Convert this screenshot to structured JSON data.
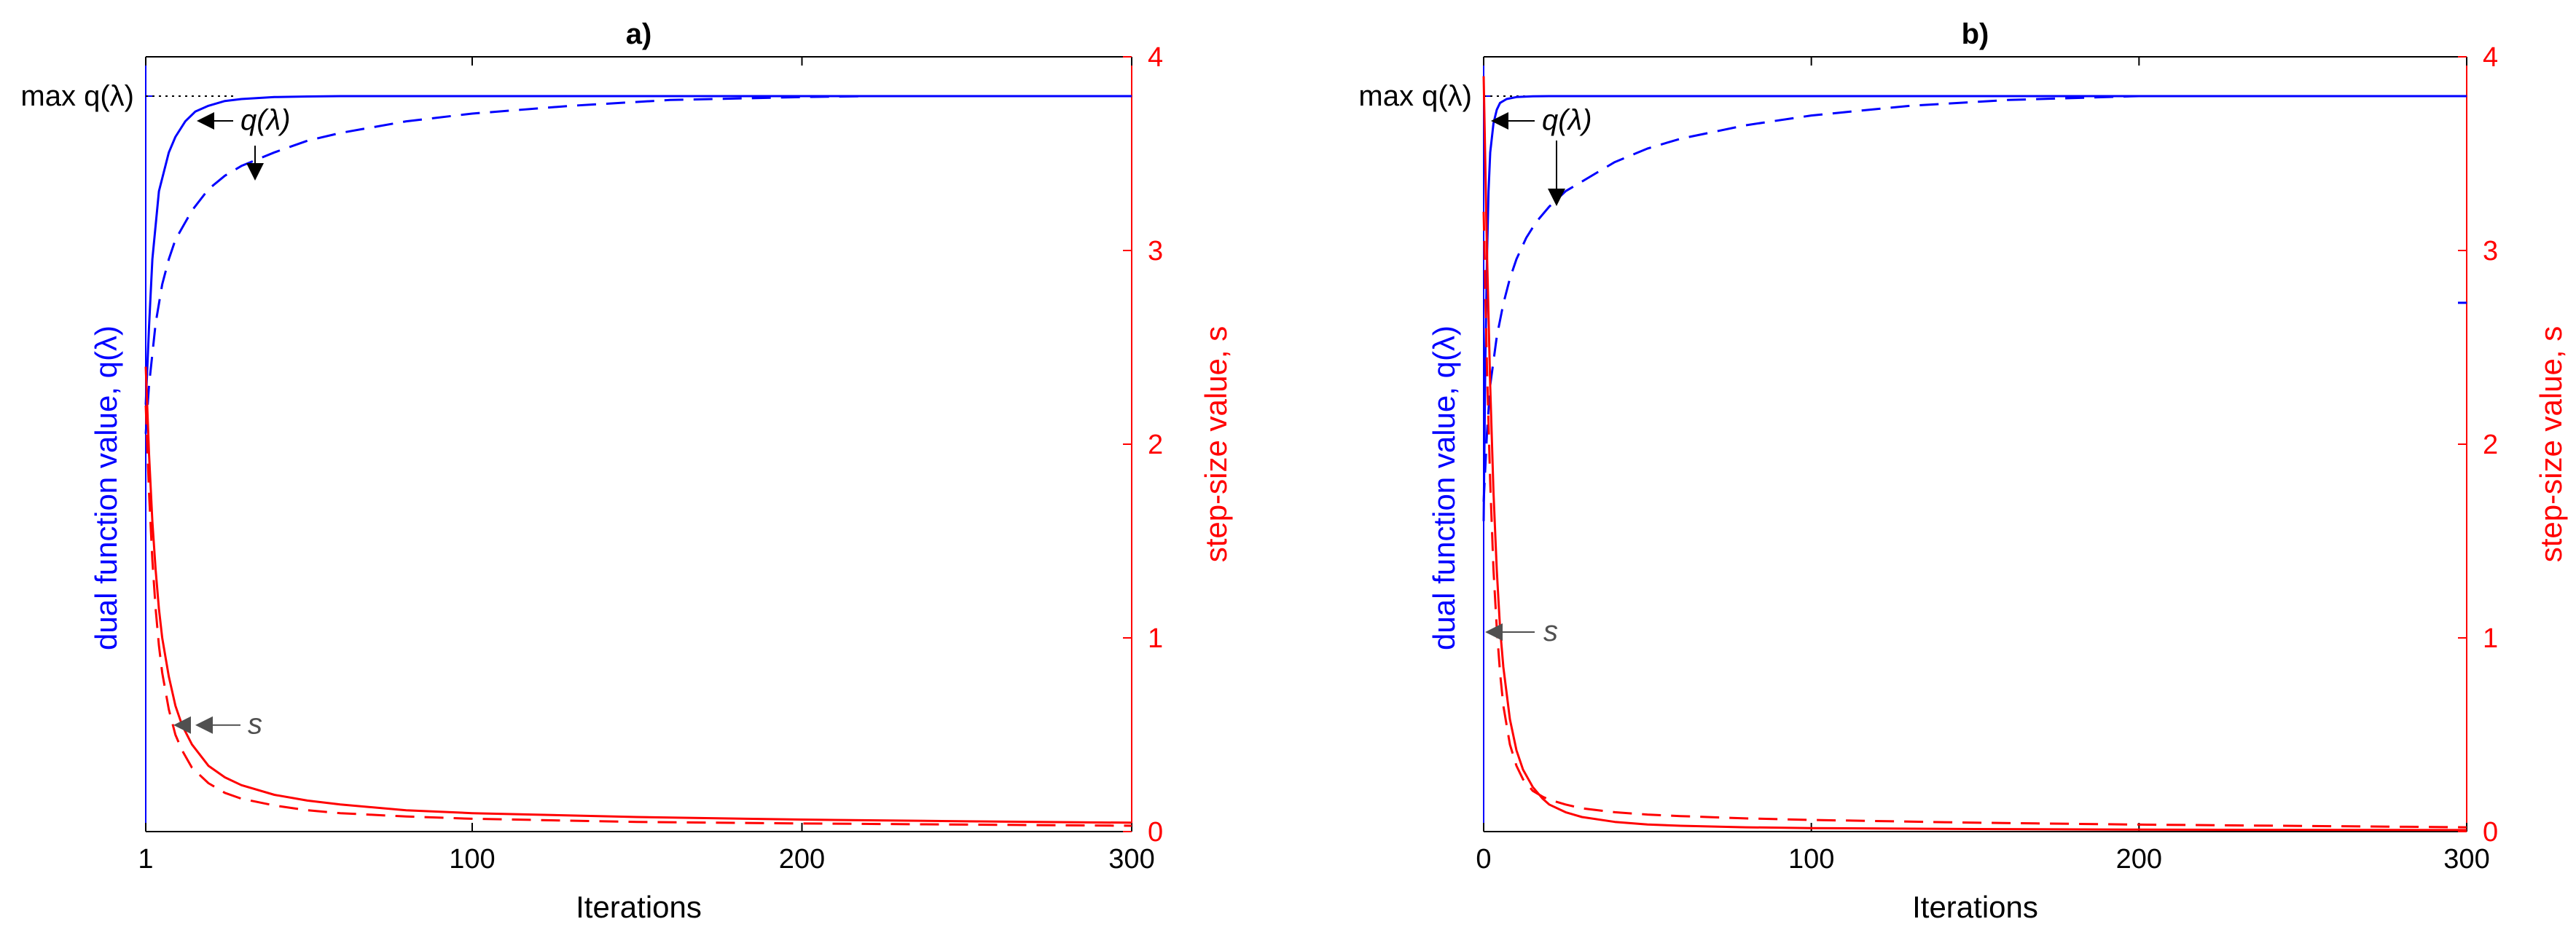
{
  "colors": {
    "dual": "#0000ff",
    "step": "#ff0000",
    "axis": "#000000",
    "arrow": "#505050",
    "background": "#ffffff"
  },
  "chart_data": [
    {
      "type": "line",
      "title": "a)",
      "xlabel": "Iterations",
      "ylabel_left": "dual function value, q(λ)",
      "ylabel_right": "step-size value, s",
      "xlim": [
        1,
        300
      ],
      "ylim_right": [
        0,
        4
      ],
      "xticks": [
        "1",
        "100",
        "200",
        "300"
      ],
      "yticks_right": [
        "0",
        "1",
        "2",
        "3",
        "4"
      ],
      "left_tick_text": "max q(λ)",
      "annotations": [
        {
          "text": "q(λ)",
          "target": "dual-solid"
        },
        {
          "text": "q(λ)",
          "target": "dual-dashed"
        },
        {
          "text": "s",
          "target": "step-size"
        }
      ],
      "series": [
        {
          "axis": "left",
          "style": "solid",
          "color": "dual",
          "x": [
            1,
            2,
            3,
            5,
            8,
            10,
            13,
            16,
            20,
            25,
            30,
            40,
            50,
            60,
            100,
            200,
            300
          ],
          "y": [
            2.2,
            2.6,
            2.95,
            3.3,
            3.5,
            3.58,
            3.66,
            3.71,
            3.74,
            3.765,
            3.775,
            3.785,
            3.788,
            3.79,
            3.79,
            3.79,
            3.79
          ]
        },
        {
          "axis": "left",
          "style": "dashed",
          "color": "dual",
          "x": [
            1,
            2,
            4,
            6,
            8,
            10,
            15,
            20,
            25,
            30,
            40,
            50,
            60,
            80,
            100,
            130,
            160,
            200,
            220
          ],
          "y": [
            2.05,
            2.3,
            2.62,
            2.82,
            2.95,
            3.05,
            3.2,
            3.31,
            3.38,
            3.43,
            3.5,
            3.56,
            3.6,
            3.66,
            3.7,
            3.74,
            3.77,
            3.785,
            3.79
          ]
        },
        {
          "axis": "right",
          "style": "solid",
          "color": "step",
          "x": [
            1,
            2,
            3,
            4,
            5,
            6,
            8,
            10,
            12,
            15,
            20,
            25,
            30,
            40,
            50,
            60,
            80,
            100,
            150,
            200,
            250,
            300
          ],
          "y": [
            2.4,
            1.95,
            1.6,
            1.35,
            1.15,
            1.0,
            0.8,
            0.65,
            0.55,
            0.45,
            0.34,
            0.28,
            0.24,
            0.19,
            0.16,
            0.14,
            0.11,
            0.095,
            0.075,
            0.062,
            0.053,
            0.046
          ]
        },
        {
          "axis": "right",
          "style": "dashed",
          "color": "step",
          "x": [
            1,
            2,
            3,
            4,
            5,
            6,
            8,
            10,
            12,
            15,
            20,
            25,
            30,
            40,
            50,
            60,
            80,
            100,
            150,
            200,
            250,
            300
          ],
          "y": [
            2.2,
            1.75,
            1.4,
            1.15,
            0.96,
            0.82,
            0.63,
            0.5,
            0.42,
            0.33,
            0.25,
            0.2,
            0.17,
            0.135,
            0.11,
            0.095,
            0.078,
            0.066,
            0.05,
            0.042,
            0.036,
            0.03
          ]
        }
      ]
    },
    {
      "type": "line",
      "title": "b)",
      "xlabel": "Iterations",
      "ylabel_left": "dual function value, q(λ)",
      "ylabel_right": "step-size value, s",
      "xlim": [
        0,
        300
      ],
      "ylim_right": [
        0,
        4
      ],
      "xticks": [
        "0",
        "100",
        "200",
        "300"
      ],
      "yticks_right": [
        "0",
        "1",
        "2",
        "3",
        "4"
      ],
      "left_tick_text": "max q(λ)",
      "annotations": [
        {
          "text": "q(λ)",
          "target": "dual-solid"
        },
        {
          "text": "s",
          "target": "step-size"
        }
      ],
      "series": [
        {
          "axis": "left",
          "style": "solid",
          "color": "dual",
          "x": [
            0,
            0.5,
            1,
            1.5,
            2,
            3,
            4,
            5,
            7,
            10,
            15,
            20,
            40,
            100,
            200,
            300
          ],
          "y": [
            1.6,
            2.4,
            2.95,
            3.3,
            3.5,
            3.65,
            3.72,
            3.755,
            3.775,
            3.785,
            3.789,
            3.79,
            3.79,
            3.79,
            3.79,
            3.79
          ]
        },
        {
          "axis": "left",
          "style": "dashed",
          "color": "dual",
          "x": [
            0,
            1,
            2,
            4,
            6,
            8,
            10,
            13,
            16,
            20,
            25,
            30,
            35,
            40,
            50,
            60,
            80,
            100,
            130,
            160,
            200
          ],
          "y": [
            1.7,
            2.05,
            2.3,
            2.55,
            2.72,
            2.85,
            2.95,
            3.06,
            3.14,
            3.22,
            3.3,
            3.35,
            3.4,
            3.45,
            3.52,
            3.57,
            3.64,
            3.69,
            3.74,
            3.77,
            3.79
          ]
        },
        {
          "axis": "right",
          "style": "solid",
          "color": "step",
          "x": [
            0,
            1,
            2,
            3,
            4,
            5,
            6,
            8,
            10,
            12,
            15,
            18,
            20,
            25,
            30,
            40,
            50,
            60,
            80,
            100,
            150,
            200,
            300
          ],
          "y": [
            3.9,
            3.0,
            2.3,
            1.75,
            1.35,
            1.05,
            0.85,
            0.58,
            0.42,
            0.32,
            0.23,
            0.17,
            0.14,
            0.1,
            0.075,
            0.05,
            0.037,
            0.03,
            0.022,
            0.018,
            0.013,
            0.01,
            0.008
          ]
        },
        {
          "axis": "right",
          "style": "dashed",
          "color": "step",
          "x": [
            0,
            1,
            2,
            3,
            4,
            5,
            6,
            8,
            10,
            12,
            15,
            18,
            20,
            25,
            30,
            40,
            50,
            60,
            80,
            100,
            150,
            200,
            300
          ],
          "y": [
            3.2,
            2.4,
            1.8,
            1.35,
            1.05,
            0.82,
            0.65,
            0.45,
            0.34,
            0.27,
            0.21,
            0.18,
            0.165,
            0.14,
            0.12,
            0.1,
            0.088,
            0.08,
            0.068,
            0.06,
            0.046,
            0.036,
            0.022
          ]
        }
      ]
    }
  ]
}
